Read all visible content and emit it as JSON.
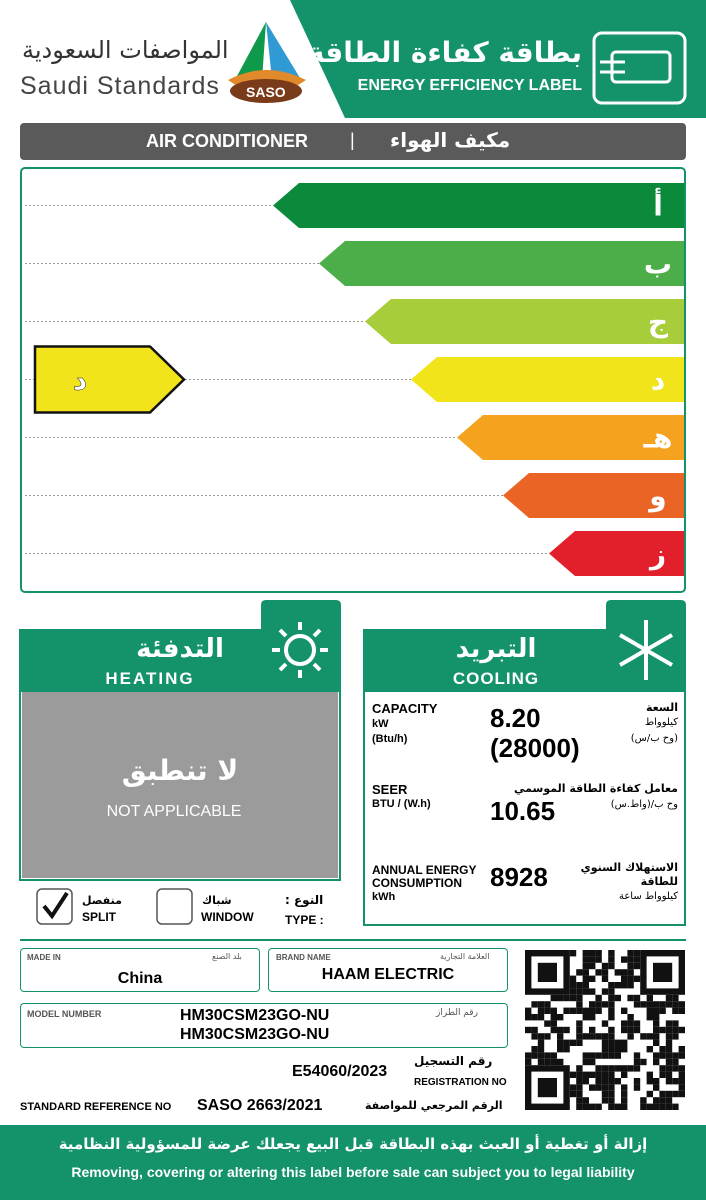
{
  "header": {
    "brand_ar": "المواصفات السعودية",
    "brand_en": "Saudi Standards",
    "logo": "SASO",
    "title_ar": "بطاقة كفاءة الطاقة",
    "title_en": "ENERGY EFFICIENCY LABEL"
  },
  "product": {
    "name_en": "AIR CONDITIONER",
    "separator": "|",
    "name_ar": "مكيف الهواء"
  },
  "ratings": {
    "classes": [
      {
        "label": "أ",
        "color": "#0b8a3c"
      },
      {
        "label": "ب",
        "color": "#4cae48"
      },
      {
        "label": "ج",
        "color": "#a8cd3a"
      },
      {
        "label": "د",
        "color": "#f2e41a"
      },
      {
        "label": "هـ",
        "color": "#f5a21f"
      },
      {
        "label": "و",
        "color": "#ea6525"
      },
      {
        "label": "ز",
        "color": "#e2202b"
      }
    ],
    "selected": "د"
  },
  "heating": {
    "title_ar": "التدفئة",
    "title_en": "HEATING",
    "status_ar": "لا تنطبق",
    "status_en": "NOT APPLICABLE"
  },
  "cooling": {
    "title_ar": "التبريد",
    "title_en": "COOLING",
    "capacity": {
      "label_en": "CAPACITY",
      "unit1_en": "kW",
      "unit2_en": "(Btu/h)",
      "value1": "8.20",
      "value2": "(28000)",
      "label_ar": "السعة",
      "unit1_ar": "كيلوواط",
      "unit2_ar": "(وح ب/س)"
    },
    "seer": {
      "label_en": "SEER",
      "unit_en": "BTU / (W.h)",
      "value": "10.65",
      "label_ar": "معامل كفاءة الطاقة الموسمي",
      "unit_ar": "وح ب/(واط.س)"
    },
    "annual": {
      "label_en": "ANNUAL ENERGY CONSUMPTION",
      "unit_en": "kWh",
      "value": "8928",
      "label_ar": "الاستهلاك السنوي للطاقة",
      "unit_ar": "كيلوواط ساعة"
    }
  },
  "type": {
    "label_ar": "النوع :",
    "label_en": "TYPE :",
    "options": [
      {
        "ar": "منفصل",
        "en": "SPLIT",
        "checked": true
      },
      {
        "ar": "شباك",
        "en": "WINDOW",
        "checked": false
      }
    ]
  },
  "details": {
    "made_in": {
      "label_en": "MADE IN",
      "label_ar": "بلد الصنع",
      "value": "China"
    },
    "brand": {
      "label_en": "BRAND NAME",
      "label_ar": "العلامة التجارية",
      "value": "HAAM ELECTRIC"
    },
    "model": {
      "label_en": "MODEL NUMBER",
      "label_ar": "رقم الطراز",
      "values": [
        "HM30CSM23GO-NU",
        "HM30CSM23GO-NU"
      ]
    },
    "registration": {
      "value": "E54060/2023",
      "label_ar": "رقم التسجيل",
      "label_en": "REGISTRATION NO"
    },
    "standard": {
      "label_en": "STANDARD REFERENCE NO",
      "value": "SASO 2663/2021",
      "label_ar": "الرقم المرجعي للمواصفة"
    }
  },
  "footer": {
    "warning_ar": "إزالة أو تغطية أو العبث بهذه البطاقة قبل البيع يجعلك عرضة للمسؤولية النظامية",
    "warning_en": "Removing, covering or altering this label before sale can subject you to legal liability"
  }
}
